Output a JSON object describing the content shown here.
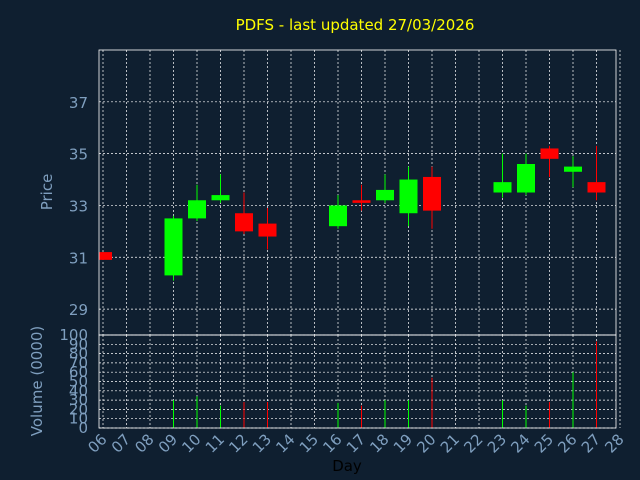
{
  "title": "PDFS - last updated 27/03/2026",
  "colors": {
    "background": "#0f1f30",
    "plot_border": "#ffffff",
    "grid": "#ffffff",
    "title": "#ffff00",
    "axis_text": "#7f9fbf",
    "xlabel": "#000000",
    "up": "#00ff00",
    "down": "#ff0000"
  },
  "chart_data": [
    {
      "type": "candlestick",
      "ylabel": "Price",
      "ylim": [
        28.0,
        39.0
      ],
      "yticks": [
        29,
        31,
        33,
        35,
        37
      ],
      "grid": true,
      "days": [
        "06",
        "07",
        "08",
        "09",
        "10",
        "11",
        "12",
        "13",
        "14",
        "15",
        "16",
        "17",
        "18",
        "19",
        "20",
        "21",
        "22",
        "23",
        "24",
        "25",
        "26",
        "27",
        "28"
      ],
      "candles": [
        {
          "day": "06",
          "open": 31.2,
          "close": 30.9,
          "high": 31.2,
          "low": 30.9
        },
        {
          "day": "09",
          "open": 30.3,
          "close": 32.5,
          "high": 32.6,
          "low": 30.1
        },
        {
          "day": "10",
          "open": 32.5,
          "close": 33.2,
          "high": 33.8,
          "low": 32.4
        },
        {
          "day": "11",
          "open": 33.2,
          "close": 33.4,
          "high": 34.2,
          "low": 33.1
        },
        {
          "day": "12",
          "open": 32.7,
          "close": 32.0,
          "high": 33.5,
          "low": 31.9
        },
        {
          "day": "13",
          "open": 32.3,
          "close": 31.8,
          "high": 32.9,
          "low": 31.3
        },
        {
          "day": "16",
          "open": 32.2,
          "close": 33.0,
          "high": 33.4,
          "low": 32.1
        },
        {
          "day": "17",
          "open": 33.2,
          "close": 33.1,
          "high": 33.8,
          "low": 32.8
        },
        {
          "day": "18",
          "open": 33.2,
          "close": 33.6,
          "high": 34.2,
          "low": 33.1
        },
        {
          "day": "19",
          "open": 32.7,
          "close": 34.0,
          "high": 34.5,
          "low": 32.2
        },
        {
          "day": "20",
          "open": 34.1,
          "close": 32.8,
          "high": 34.5,
          "low": 32.1
        },
        {
          "day": "23",
          "open": 33.5,
          "close": 33.9,
          "high": 35.0,
          "low": 33.3
        },
        {
          "day": "24",
          "open": 33.5,
          "close": 34.6,
          "high": 35.0,
          "low": 33.4
        },
        {
          "day": "25",
          "open": 35.2,
          "close": 34.8,
          "high": 35.3,
          "low": 34.1
        },
        {
          "day": "26",
          "open": 34.3,
          "close": 34.5,
          "high": 34.9,
          "low": 33.7
        },
        {
          "day": "27",
          "open": 33.9,
          "close": 33.5,
          "high": 35.3,
          "low": 33.2
        }
      ]
    },
    {
      "type": "bar",
      "ylabel": "Volume (0000)",
      "xlabel": "Day",
      "ylim": [
        0,
        100
      ],
      "yticks": [
        0,
        10,
        20,
        30,
        40,
        50,
        60,
        70,
        80,
        90,
        100
      ],
      "grid": true,
      "bars": [
        {
          "day": "09",
          "value": 30,
          "direction": "up"
        },
        {
          "day": "10",
          "value": 34,
          "direction": "up"
        },
        {
          "day": "11",
          "value": 24,
          "direction": "up"
        },
        {
          "day": "12",
          "value": 28,
          "direction": "down"
        },
        {
          "day": "13",
          "value": 28,
          "direction": "down"
        },
        {
          "day": "16",
          "value": 27,
          "direction": "up"
        },
        {
          "day": "17",
          "value": 24,
          "direction": "down"
        },
        {
          "day": "18",
          "value": 30,
          "direction": "up"
        },
        {
          "day": "19",
          "value": 30,
          "direction": "up"
        },
        {
          "day": "20",
          "value": 54,
          "direction": "down"
        },
        {
          "day": "23",
          "value": 30,
          "direction": "up"
        },
        {
          "day": "24",
          "value": 24,
          "direction": "up"
        },
        {
          "day": "25",
          "value": 28,
          "direction": "down"
        },
        {
          "day": "26",
          "value": 60,
          "direction": "up"
        },
        {
          "day": "27",
          "value": 93,
          "direction": "down"
        }
      ]
    }
  ]
}
